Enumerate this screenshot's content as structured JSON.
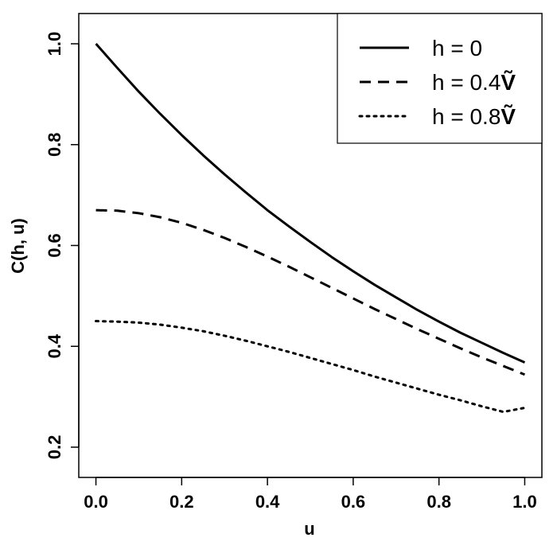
{
  "chart_data": {
    "type": "line",
    "title": "",
    "xlabel": "u",
    "ylabel": "C(h, u)",
    "xlim": [
      -0.04,
      1.04
    ],
    "ylim": [
      0.14,
      1.06
    ],
    "x_ticks": [
      0.0,
      0.2,
      0.4,
      0.6,
      0.8,
      1.0
    ],
    "y_ticks": [
      0.2,
      0.4,
      0.6,
      0.8,
      1.0
    ],
    "x_tick_labels": [
      "0.0",
      "0.2",
      "0.4",
      "0.6",
      "0.8",
      "1.0"
    ],
    "y_tick_labels": [
      "0.2",
      "0.4",
      "0.6",
      "0.8",
      "1.0"
    ],
    "grid": false,
    "legend_position": "top-right",
    "line_color": "#000000",
    "x": [
      0.0,
      0.05,
      0.1,
      0.15,
      0.2,
      0.25,
      0.3,
      0.35,
      0.4,
      0.45,
      0.5,
      0.55,
      0.6,
      0.65,
      0.7,
      0.75,
      0.8,
      0.85,
      0.9,
      0.95,
      1.0
    ],
    "series": [
      {
        "name": "h = 0",
        "label_prefix": "h = 0",
        "label_symbol": "",
        "dash": "solid",
        "values": [
          1.0,
          0.952,
          0.905,
          0.861,
          0.819,
          0.779,
          0.741,
          0.705,
          0.67,
          0.638,
          0.607,
          0.577,
          0.549,
          0.522,
          0.497,
          0.472,
          0.449,
          0.427,
          0.407,
          0.387,
          0.368
        ]
      },
      {
        "name": "h = 0.4Ṽ",
        "label_prefix": "h = 0.4",
        "label_symbol": "Ṽ",
        "dash": "dashed",
        "values": [
          0.67,
          0.669,
          0.664,
          0.656,
          0.645,
          0.631,
          0.615,
          0.597,
          0.578,
          0.558,
          0.537,
          0.516,
          0.495,
          0.474,
          0.454,
          0.434,
          0.415,
          0.396,
          0.378,
          0.361,
          0.344
        ]
      },
      {
        "name": "h = 0.8Ṽ",
        "label_prefix": "h = 0.8",
        "label_symbol": "Ṽ",
        "dash": "dotted",
        "values": [
          0.45,
          0.449,
          0.447,
          0.443,
          0.437,
          0.43,
          0.421,
          0.411,
          0.4,
          0.389,
          0.377,
          0.365,
          0.353,
          0.34,
          0.328,
          0.316,
          0.304,
          0.293,
          0.281,
          0.27,
          0.278
        ]
      }
    ]
  }
}
